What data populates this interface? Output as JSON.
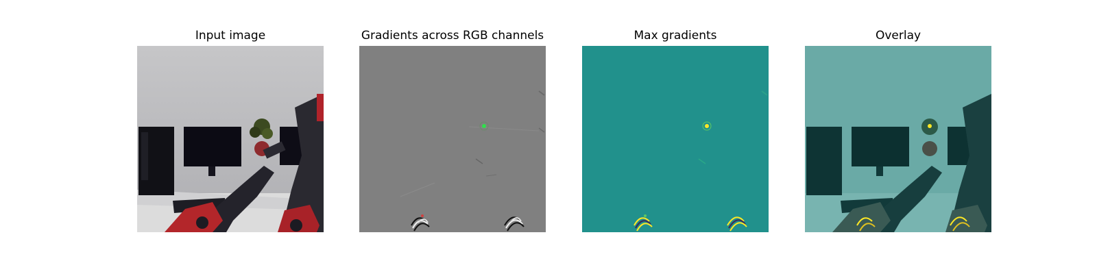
{
  "figure": {
    "panels": [
      {
        "title": "Input image",
        "image": "photo-of-desk-with-monitors-and-red-robot-arm"
      },
      {
        "title": "Gradients across RGB channels",
        "image": "gray-gradient-map"
      },
      {
        "title": "Max gradients",
        "image": "teal-max-gradient-map"
      },
      {
        "title": "Overlay",
        "image": "teal-overlay-on-photo"
      }
    ]
  },
  "colors": {
    "gradient_gray": "#808080",
    "max_gradient_teal": "#21918c",
    "highlight_yellow": "#fde725",
    "robot_red": "#b3262a"
  }
}
